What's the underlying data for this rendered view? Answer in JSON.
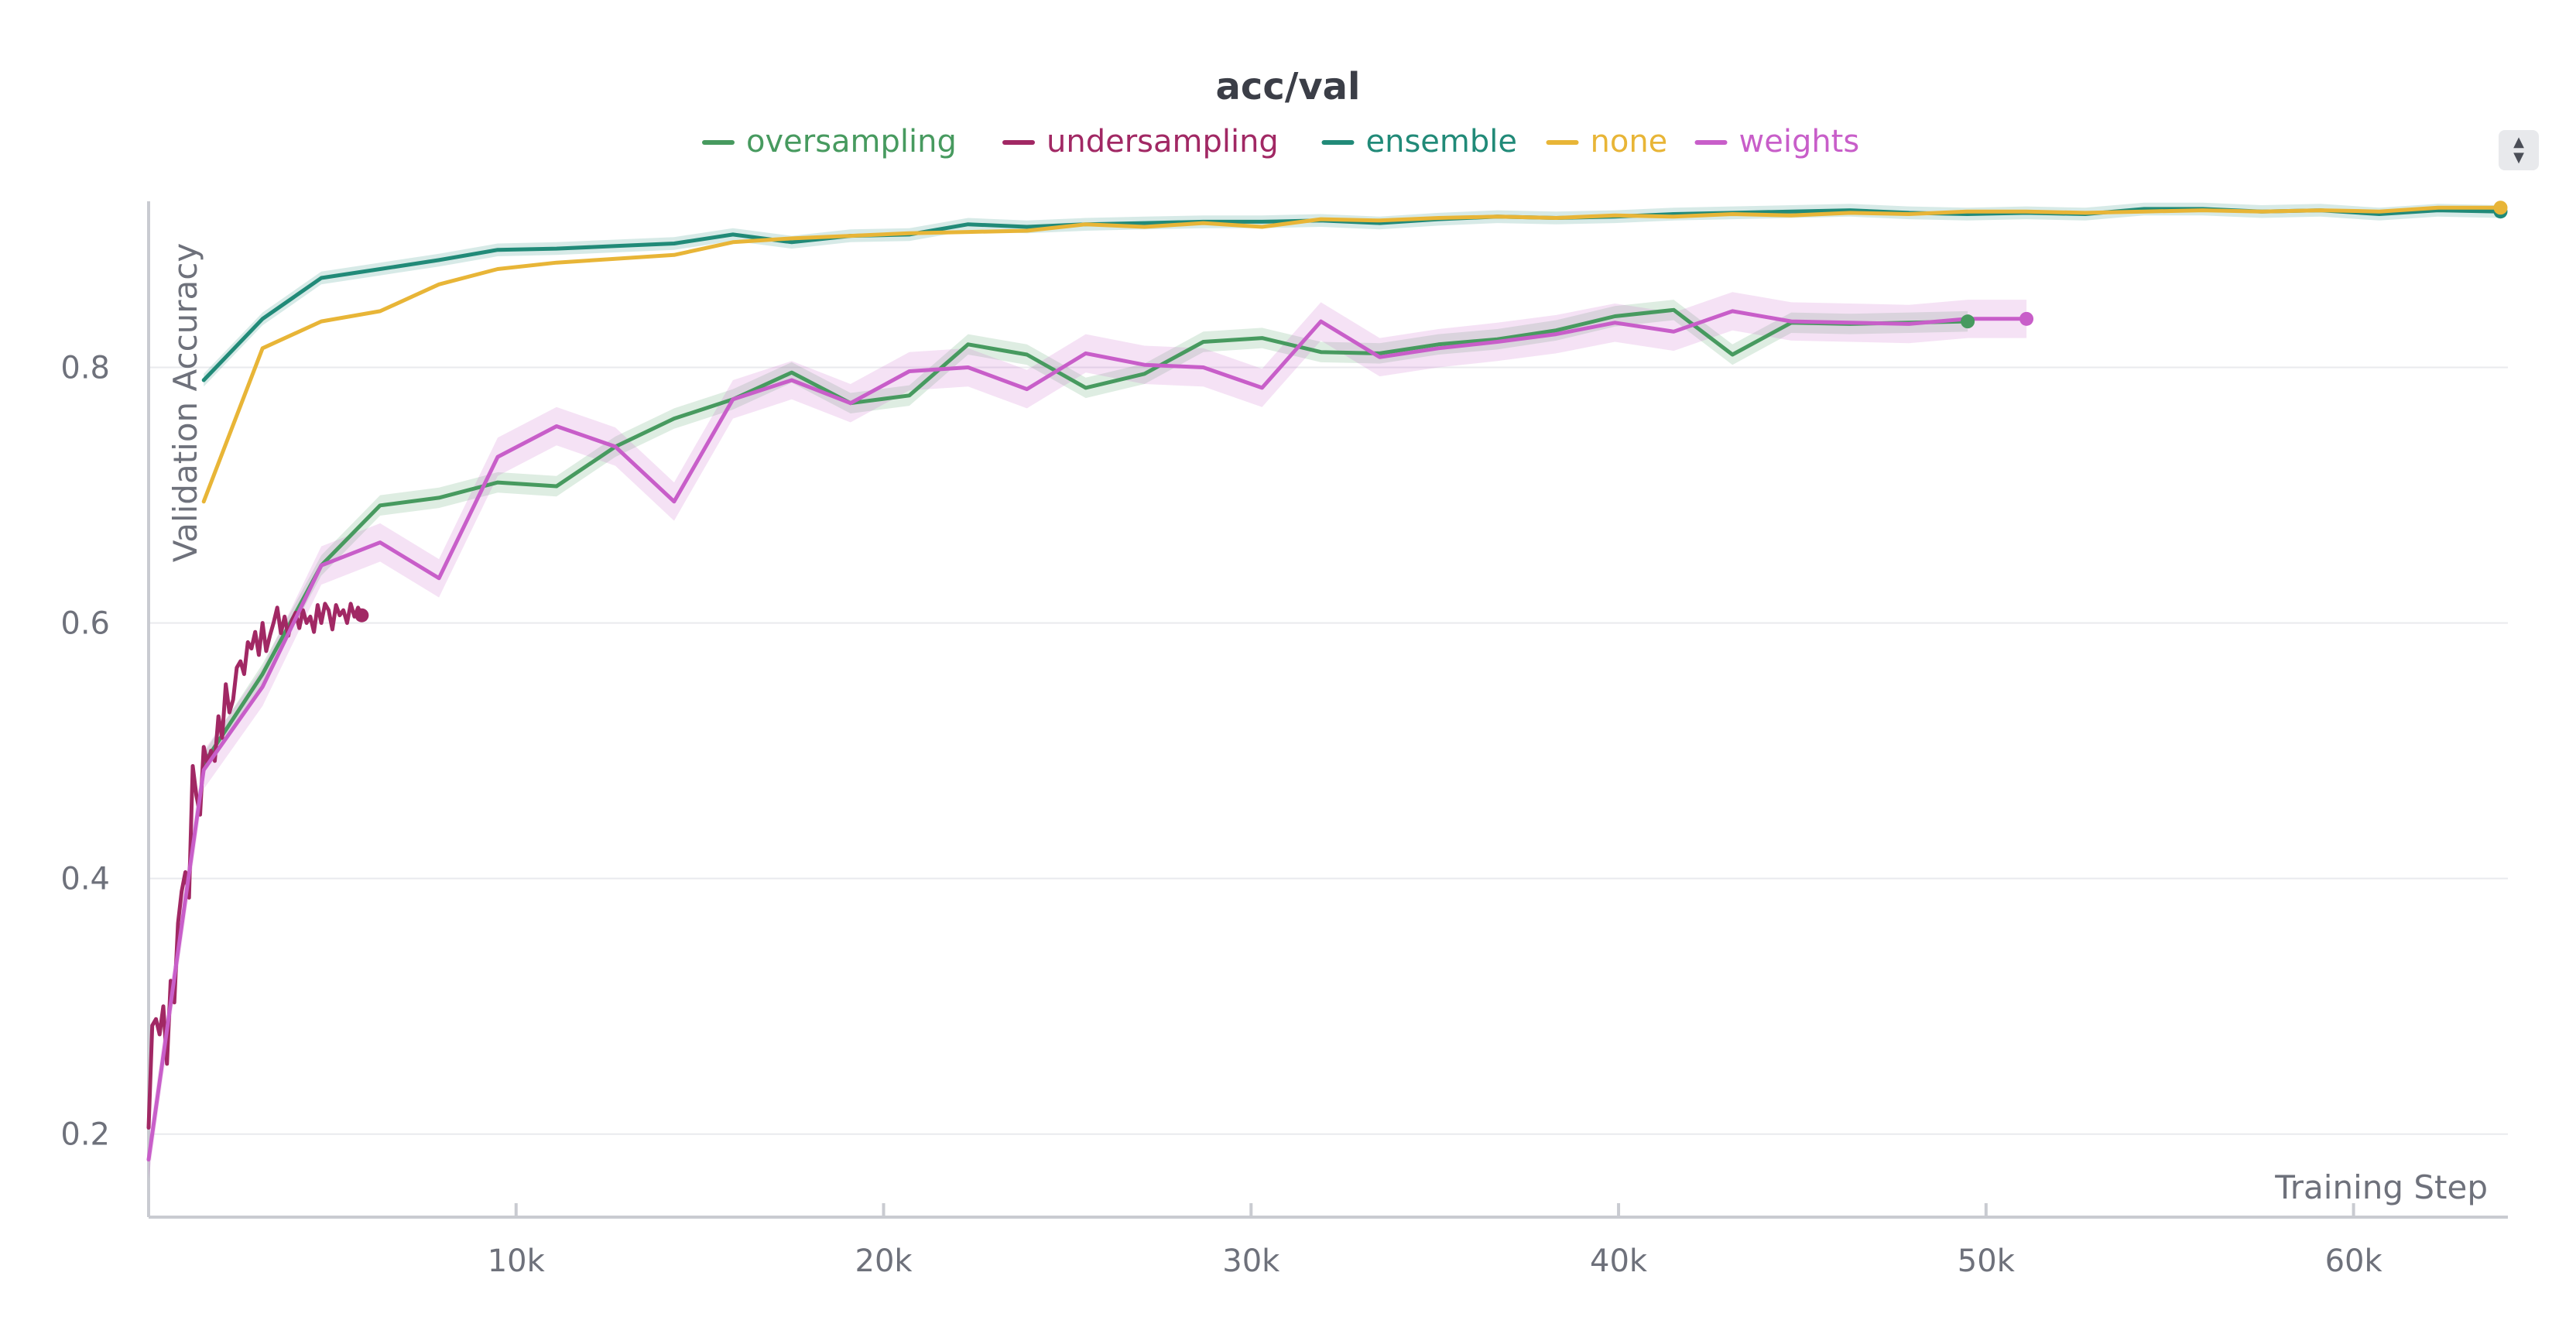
{
  "chart_data": {
    "type": "line",
    "title": "acc/val",
    "xlabel": "Training Step",
    "ylabel": "Validation Accuracy",
    "xlim": [
      0,
      64200
    ],
    "ylim": [
      0.135,
      0.93
    ],
    "xticks": [
      10000,
      20000,
      30000,
      40000,
      50000,
      60000
    ],
    "xtick_labels": [
      "10k",
      "20k",
      "30k",
      "40k",
      "50k",
      "60k"
    ],
    "yticks": [
      0.2,
      0.4,
      0.6,
      0.8
    ],
    "ytick_labels": [
      "0.2",
      "0.4",
      "0.6",
      "0.8"
    ],
    "grid": true,
    "legend_position": "top",
    "series": [
      {
        "name": "oversampling",
        "color": "#479a5f",
        "band": 0.008,
        "end_marker": true,
        "x": [
          1500,
          3100,
          4700,
          6300,
          7900,
          9500,
          11100,
          12700,
          14300,
          15900,
          17500,
          19100,
          20700,
          22300,
          23900,
          25500,
          27100,
          28700,
          30300,
          31900,
          33500,
          35100,
          36700,
          38300,
          39900,
          41500,
          43100,
          44700,
          46300,
          47900,
          49500
        ],
        "y": [
          0.49,
          0.56,
          0.645,
          0.692,
          0.698,
          0.71,
          0.707,
          0.738,
          0.76,
          0.775,
          0.796,
          0.772,
          0.778,
          0.818,
          0.81,
          0.784,
          0.795,
          0.82,
          0.823,
          0.812,
          0.811,
          0.818,
          0.822,
          0.829,
          0.84,
          0.845,
          0.81,
          0.835,
          0.834,
          0.835,
          0.836
        ]
      },
      {
        "name": "undersampling",
        "color": "#a12864",
        "band": 0,
        "end_marker": true,
        "x": [
          0,
          100,
          200,
          300,
          400,
          500,
          600,
          700,
          800,
          900,
          1000,
          1100,
          1200,
          1300,
          1400,
          1500,
          1600,
          1700,
          1800,
          1900,
          2000,
          2100,
          2200,
          2300,
          2400,
          2500,
          2600,
          2700,
          2800,
          2900,
          3000,
          3100,
          3200,
          3300,
          3400,
          3500,
          3600,
          3700,
          3800,
          3900,
          4000,
          4100,
          4200,
          4300,
          4400,
          4500,
          4600,
          4700,
          4800,
          4900,
          5000,
          5100,
          5200,
          5300,
          5400,
          5500,
          5600,
          5700,
          5800
        ],
        "y": [
          0.205,
          0.285,
          0.29,
          0.278,
          0.3,
          0.255,
          0.32,
          0.303,
          0.365,
          0.39,
          0.405,
          0.385,
          0.488,
          0.465,
          0.45,
          0.503,
          0.49,
          0.5,
          0.492,
          0.527,
          0.51,
          0.552,
          0.53,
          0.54,
          0.565,
          0.57,
          0.56,
          0.585,
          0.58,
          0.593,
          0.575,
          0.6,
          0.578,
          0.59,
          0.6,
          0.612,
          0.592,
          0.605,
          0.59,
          0.602,
          0.608,
          0.596,
          0.61,
          0.6,
          0.605,
          0.593,
          0.614,
          0.6,
          0.615,
          0.61,
          0.595,
          0.614,
          0.606,
          0.61,
          0.6,
          0.615,
          0.605,
          0.612,
          0.606
        ]
      },
      {
        "name": "ensemble",
        "color": "#218a78",
        "band": 0.005,
        "end_marker": true,
        "x": [
          1500,
          3100,
          4700,
          6300,
          7900,
          9500,
          11100,
          12700,
          14300,
          15900,
          17500,
          19100,
          20700,
          22300,
          23900,
          25500,
          27100,
          28700,
          30300,
          31900,
          33500,
          35100,
          36700,
          38300,
          39900,
          41500,
          43100,
          44700,
          46300,
          47900,
          49500,
          51100,
          52700,
          54300,
          55900,
          57500,
          59100,
          60700,
          62300,
          64000
        ],
        "y": [
          0.79,
          0.838,
          0.87,
          0.877,
          0.884,
          0.892,
          0.893,
          0.895,
          0.897,
          0.904,
          0.898,
          0.903,
          0.904,
          0.912,
          0.91,
          0.912,
          0.913,
          0.914,
          0.914,
          0.915,
          0.913,
          0.916,
          0.918,
          0.917,
          0.918,
          0.92,
          0.921,
          0.922,
          0.923,
          0.921,
          0.92,
          0.921,
          0.92,
          0.924,
          0.924,
          0.922,
          0.923,
          0.92,
          0.923,
          0.922
        ]
      },
      {
        "name": "none",
        "color": "#e8b537",
        "band": 0,
        "end_marker": true,
        "x": [
          1500,
          3100,
          4700,
          6300,
          7900,
          9500,
          11100,
          12700,
          14300,
          15900,
          17500,
          19100,
          20700,
          22300,
          23900,
          25500,
          27100,
          28700,
          30300,
          31900,
          33500,
          35100,
          36700,
          38300,
          39900,
          41500,
          43100,
          44700,
          46300,
          47900,
          49500,
          51100,
          52700,
          54300,
          55900,
          57500,
          59100,
          60700,
          62300,
          64000
        ],
        "y": [
          0.695,
          0.815,
          0.836,
          0.844,
          0.865,
          0.877,
          0.882,
          0.885,
          0.888,
          0.898,
          0.901,
          0.903,
          0.905,
          0.906,
          0.907,
          0.912,
          0.91,
          0.913,
          0.91,
          0.916,
          0.915,
          0.917,
          0.918,
          0.917,
          0.919,
          0.918,
          0.92,
          0.919,
          0.921,
          0.92,
          0.922,
          0.922,
          0.921,
          0.922,
          0.923,
          0.922,
          0.923,
          0.922,
          0.925,
          0.925
        ]
      },
      {
        "name": "weights",
        "color": "#c85ec9",
        "band": 0.015,
        "end_marker": true,
        "x": [
          0,
          1500,
          3100,
          4700,
          6300,
          7900,
          9500,
          11100,
          12700,
          14300,
          15900,
          17500,
          19100,
          20700,
          22300,
          23900,
          25500,
          27100,
          28700,
          30300,
          31900,
          33500,
          35100,
          36700,
          38300,
          39900,
          41500,
          43100,
          44700,
          46300,
          47900,
          49500,
          51100
        ],
        "y": [
          0.18,
          0.485,
          0.55,
          0.645,
          0.663,
          0.635,
          0.73,
          0.754,
          0.738,
          0.695,
          0.775,
          0.79,
          0.772,
          0.797,
          0.8,
          0.783,
          0.811,
          0.802,
          0.8,
          0.784,
          0.836,
          0.808,
          0.815,
          0.82,
          0.826,
          0.835,
          0.828,
          0.844,
          0.836,
          0.835,
          0.834,
          0.838,
          0.838
        ]
      }
    ]
  }
}
